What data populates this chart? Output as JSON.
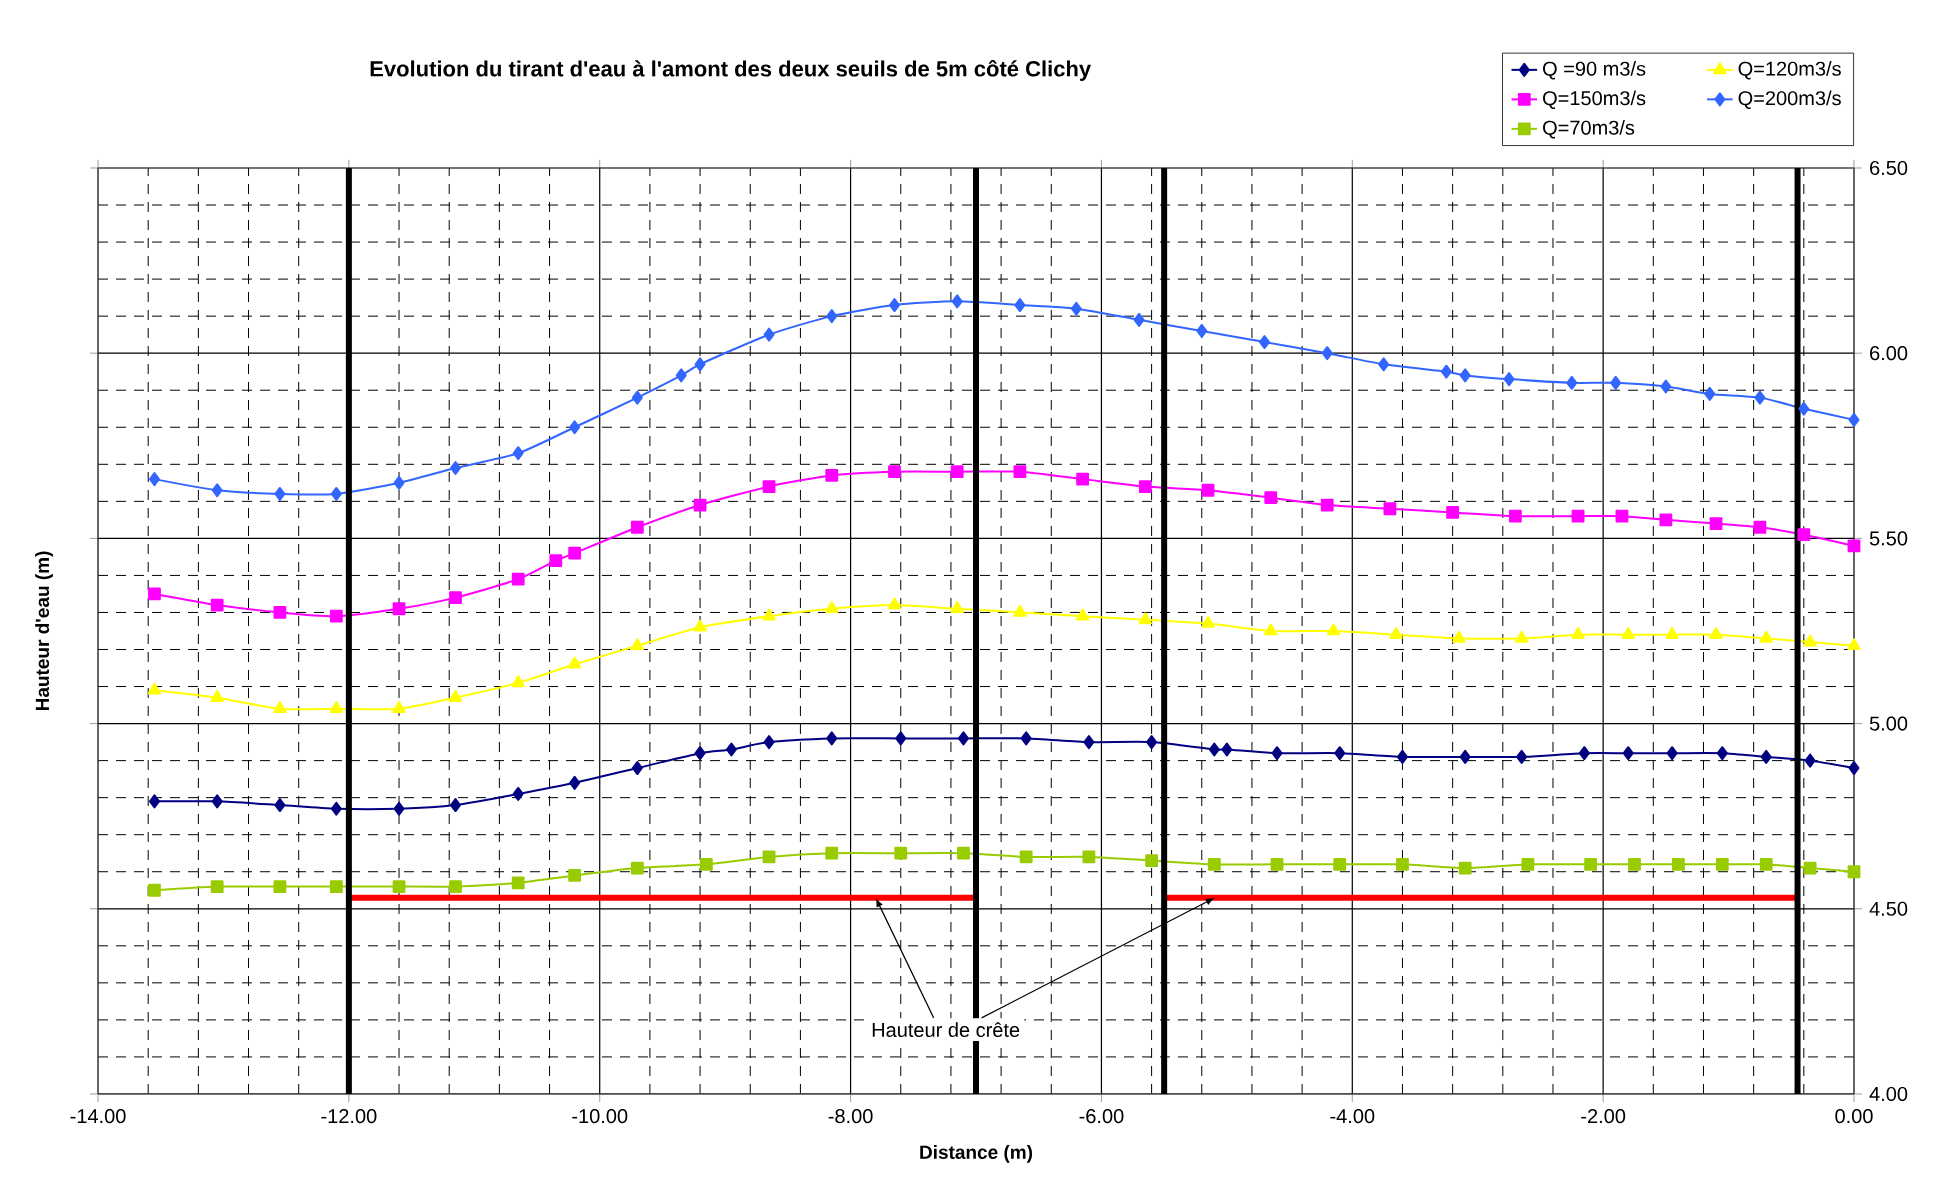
{
  "chart_data": {
    "type": "line",
    "title": "Evolution du tirant d'eau à l'amont des deux seuils de 5m côté Clichy",
    "xlabel": "Distance (m)",
    "ylabel": "Hauteur d'eau (m)",
    "xlim": [
      -14,
      0
    ],
    "ylim": [
      4,
      6.5
    ],
    "xticks": [
      {
        "value": -14,
        "label": "-14.00"
      },
      {
        "value": -12,
        "label": "-12.00"
      },
      {
        "value": -10,
        "label": "-10.00"
      },
      {
        "value": -8,
        "label": "-8.00"
      },
      {
        "value": -6,
        "label": "-6.00"
      },
      {
        "value": -4,
        "label": "-4.00"
      },
      {
        "value": -2,
        "label": "-2.00"
      },
      {
        "value": 0,
        "label": "0.00"
      }
    ],
    "yticks": [
      {
        "value": 4,
        "label": "4.00"
      },
      {
        "value": 4.5,
        "label": "4.50"
      },
      {
        "value": 5,
        "label": "5.00"
      },
      {
        "value": 5.5,
        "label": "5.50"
      },
      {
        "value": 6,
        "label": "6.00"
      },
      {
        "value": 6.5,
        "label": "6.50"
      }
    ],
    "grid": true,
    "legend": "top right",
    "series": [
      {
        "name": "Q =90 m3/s",
        "color": "#000080",
        "marker": "diamond",
        "x": [
          -13.55,
          -13.05,
          -12.55,
          -12.1,
          -11.6,
          -11.15,
          -10.65,
          -10.2,
          -9.7,
          -9.2,
          -8.95,
          -8.65,
          -8.15,
          -7.6,
          -7.1,
          -6.6,
          -6.1,
          -5.6,
          -5.1,
          -5.0,
          -4.6,
          -4.1,
          -3.6,
          -3.1,
          -2.65,
          -2.15,
          -1.8,
          -1.45,
          -1.05,
          -0.7,
          -0.35,
          0
        ],
        "values": [
          4.79,
          4.79,
          4.78,
          4.77,
          4.77,
          4.78,
          4.81,
          4.84,
          4.88,
          4.92,
          4.93,
          4.95,
          4.96,
          4.96,
          4.96,
          4.96,
          4.95,
          4.95,
          4.93,
          4.93,
          4.92,
          4.92,
          4.91,
          4.91,
          4.91,
          4.92,
          4.92,
          4.92,
          4.92,
          4.91,
          4.9,
          4.88
        ]
      },
      {
        "name": "Q=120m3/s",
        "color": "#ffff00",
        "marker": "triangle",
        "x": [
          -13.55,
          -13.05,
          -12.55,
          -12.1,
          -11.6,
          -11.15,
          -10.65,
          -10.2,
          -9.7,
          -9.2,
          -8.65,
          -8.15,
          -7.65,
          -7.15,
          -6.65,
          -6.15,
          -5.65,
          -5.15,
          -4.65,
          -4.15,
          -3.65,
          -3.15,
          -2.65,
          -2.2,
          -1.8,
          -1.45,
          -1.1,
          -0.7,
          -0.35,
          0
        ],
        "values": [
          5.09,
          5.07,
          5.04,
          5.04,
          5.04,
          5.07,
          5.11,
          5.16,
          5.21,
          5.26,
          5.29,
          5.31,
          5.32,
          5.31,
          5.3,
          5.29,
          5.28,
          5.27,
          5.25,
          5.25,
          5.24,
          5.23,
          5.23,
          5.24,
          5.24,
          5.24,
          5.24,
          5.23,
          5.22,
          5.21
        ]
      },
      {
        "name": "Q=150m3/s",
        "color": "#ff00ff",
        "marker": "square",
        "x": [
          -13.55,
          -13.05,
          -12.55,
          -12.1,
          -11.6,
          -11.15,
          -10.65,
          -10.35,
          -10.2,
          -9.7,
          -9.2,
          -8.65,
          -8.15,
          -7.65,
          -7.15,
          -6.65,
          -6.15,
          -5.65,
          -5.15,
          -4.65,
          -4.2,
          -3.7,
          -3.2,
          -2.7,
          -2.2,
          -1.85,
          -1.5,
          -1.1,
          -0.75,
          -0.4,
          0
        ],
        "values": [
          5.35,
          5.32,
          5.3,
          5.29,
          5.31,
          5.34,
          5.39,
          5.44,
          5.46,
          5.53,
          5.59,
          5.64,
          5.67,
          5.68,
          5.68,
          5.68,
          5.66,
          5.64,
          5.63,
          5.61,
          5.59,
          5.58,
          5.57,
          5.56,
          5.56,
          5.56,
          5.55,
          5.54,
          5.53,
          5.51,
          5.48
        ]
      },
      {
        "name": "Q=200m3/s",
        "color": "#3366ff",
        "marker": "diamond",
        "x": [
          -13.55,
          -13.05,
          -12.55,
          -12.1,
          -11.6,
          -11.15,
          -10.65,
          -10.2,
          -9.7,
          -9.35,
          -9.2,
          -8.65,
          -8.15,
          -7.65,
          -7.15,
          -6.65,
          -6.2,
          -5.7,
          -5.2,
          -4.7,
          -4.2,
          -3.75,
          -3.25,
          -3.1,
          -2.75,
          -2.25,
          -1.9,
          -1.5,
          -1.15,
          -0.75,
          -0.4,
          0
        ],
        "values": [
          5.66,
          5.63,
          5.62,
          5.62,
          5.65,
          5.69,
          5.73,
          5.8,
          5.88,
          5.94,
          5.97,
          6.05,
          6.1,
          6.13,
          6.14,
          6.13,
          6.12,
          6.09,
          6.06,
          6.03,
          6.0,
          5.97,
          5.95,
          5.94,
          5.93,
          5.92,
          5.92,
          5.91,
          5.89,
          5.88,
          5.85,
          5.82
        ]
      },
      {
        "name": "Q=70m3/s",
        "color": "#99cc00",
        "marker": "square",
        "x": [
          -13.55,
          -13.05,
          -12.55,
          -12.1,
          -11.6,
          -11.15,
          -10.65,
          -10.2,
          -9.7,
          -9.15,
          -8.65,
          -8.15,
          -7.6,
          -7.1,
          -6.6,
          -6.1,
          -5.6,
          -5.1,
          -4.6,
          -4.1,
          -3.6,
          -3.1,
          -2.6,
          -2.1,
          -1.75,
          -1.4,
          -1.05,
          -0.7,
          -0.35,
          0
        ],
        "values": [
          4.55,
          4.56,
          4.56,
          4.56,
          4.56,
          4.56,
          4.57,
          4.59,
          4.61,
          4.62,
          4.64,
          4.65,
          4.65,
          4.65,
          4.64,
          4.64,
          4.63,
          4.62,
          4.62,
          4.62,
          4.62,
          4.61,
          4.62,
          4.62,
          4.62,
          4.62,
          4.62,
          4.62,
          4.61,
          4.6
        ]
      },
      {
        "color": "#ff0000",
        "marker": "none",
        "x": [
          -12,
          -7,
          null,
          -5.5,
          -0.45
        ],
        "values": [
          4.53,
          4.53,
          null,
          4.53,
          4.53
        ]
      }
    ],
    "ref_lines": [
      {
        "axis": "x",
        "value": -12,
        "color": "#000000"
      },
      {
        "axis": "x",
        "value": -7,
        "color": "#000000"
      },
      {
        "axis": "x",
        "value": -5.5,
        "color": "#000000"
      },
      {
        "axis": "x",
        "value": -0.45,
        "color": "#000000"
      }
    ],
    "annotations": [
      {
        "text": "Hauteur de crête",
        "x": -7.8,
        "y": 4.53
      }
    ]
  }
}
